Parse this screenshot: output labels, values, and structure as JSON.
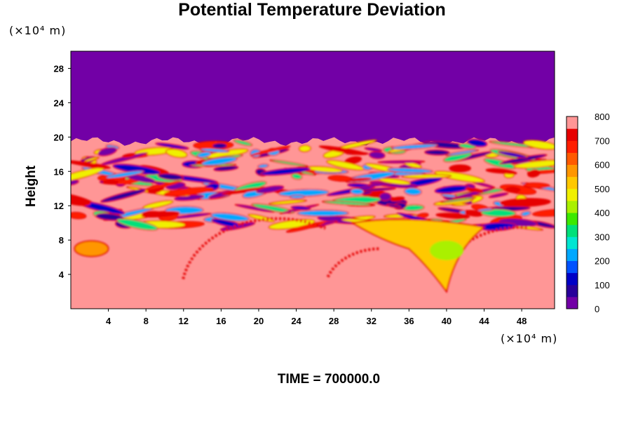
{
  "chart_data": {
    "type": "heatmap",
    "title": "Potential Temperature Deviation",
    "xlabel": "",
    "ylabel": "Height",
    "x_unit": "(×10⁴ m)",
    "y_unit": "(×10⁴ m)",
    "footer": "TIME = 700000.0",
    "xlim": [
      0,
      51.5
    ],
    "ylim": [
      0,
      30
    ],
    "x_ticks": [
      4,
      8,
      12,
      16,
      20,
      24,
      28,
      32,
      36,
      40,
      44,
      48
    ],
    "y_ticks": [
      4,
      8,
      12,
      16,
      20,
      24,
      28
    ],
    "colorbar": {
      "min": 0,
      "max": 800,
      "ticks": [
        0,
        100,
        200,
        300,
        400,
        500,
        600,
        700,
        800
      ],
      "colors": [
        "#7200a6",
        "#28009a",
        "#0000c6",
        "#0052ff",
        "#00a8ff",
        "#00e6d2",
        "#00e07a",
        "#3ce800",
        "#aaf000",
        "#f0f000",
        "#ffc800",
        "#ff9600",
        "#ff5a00",
        "#ff1e00",
        "#e60000",
        "#ff9696"
      ]
    },
    "field_summary": {
      "upper_region_value": 0,
      "upper_region_bottom_height": 19.5,
      "lower_region_value": 800
    }
  }
}
